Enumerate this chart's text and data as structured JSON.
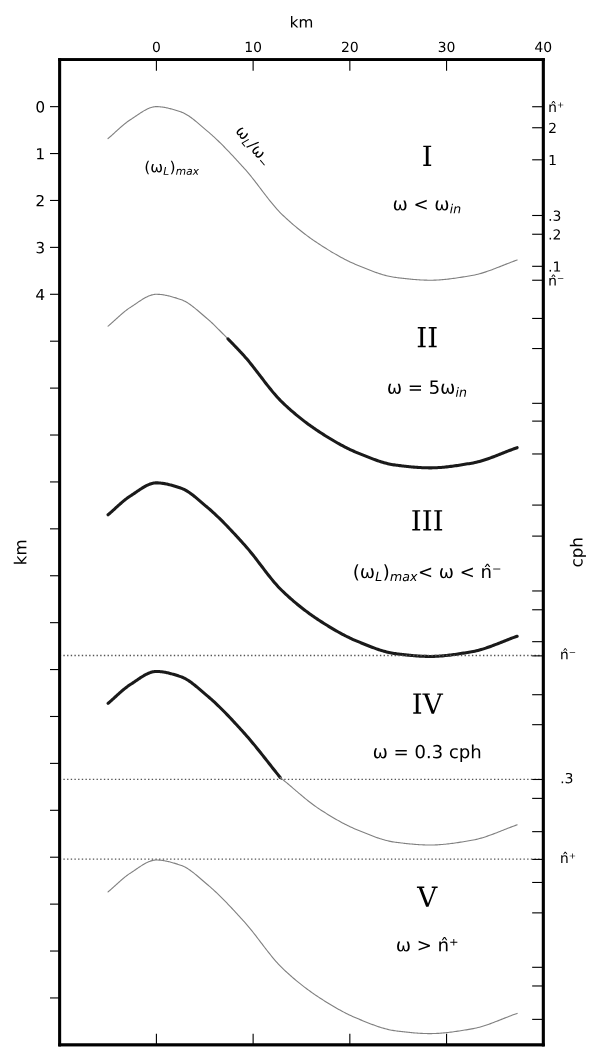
{
  "chart_data": {
    "type": "line",
    "xlabel": "km",
    "ylabel": "km",
    "y2label": "cph",
    "xlim": [
      -10,
      40
    ],
    "xticks": [
      0,
      10,
      20,
      30,
      40
    ],
    "ylim": [
      20,
      -1
    ],
    "yticks": [
      0,
      1,
      2,
      3,
      4,
      {
        "value": 5,
        "label": null
      },
      {
        "value": 6,
        "label": null
      },
      {
        "value": 7,
        "label": null
      },
      {
        "value": 8,
        "label": null
      },
      {
        "value": 9,
        "label": null
      },
      {
        "value": 10,
        "label": null
      },
      {
        "value": 11,
        "label": null
      },
      {
        "value": 12,
        "label": null
      },
      {
        "value": 13,
        "label": null
      },
      {
        "value": 14,
        "label": null
      },
      {
        "value": 15,
        "label": null
      },
      {
        "value": 16,
        "label": null
      },
      {
        "value": 17,
        "label": null
      },
      {
        "value": 18,
        "label": null
      },
      {
        "value": 19,
        "label": null
      }
    ],
    "y2lim": [
      4.9e-09,
      8.7
    ],
    "log": "y2",
    "y2ticks": [
      {
        "value": 3.15,
        "label": "n̂⁺"
      },
      2,
      1,
      {
        "value": 0.3,
        "label": ".3"
      },
      {
        "value": 0.2,
        "label": ".2"
      },
      {
        "value": 0.1,
        "label": ".1"
      },
      {
        "value": 0.074,
        "label": "n̂⁻"
      },
      {
        "value": 0.0324,
        "label": null
      },
      {
        "value": 0.0169,
        "label": null
      },
      {
        "value": 0.00517,
        "label": null
      },
      {
        "value": 0.00352,
        "label": null
      },
      {
        "value": 0.00173,
        "label": null
      },
      {
        "value": 0.000573,
        "label": null
      },
      {
        "value": 0.000293,
        "label": null
      },
      {
        "value": 8.95e-05,
        "label": null
      },
      {
        "value": 5.96e-05,
        "label": null
      },
      {
        "value": 2.99e-05,
        "label": null
      },
      {
        "value": 2.2e-05,
        "label": null
      },
      {
        "value": 9.5e-06,
        "label": null
      },
      {
        "value": 4.97e-06,
        "label": null
      },
      {
        "value": 1.52e-06,
        "label": null
      },
      {
        "value": 1.01e-06,
        "label": null
      },
      {
        "value": 4.92e-07,
        "label": null
      },
      {
        "value": 2.7e-07,
        "label": null
      },
      {
        "value": 1.64e-07,
        "label": null
      },
      {
        "value": 8.5e-08,
        "label": null
      },
      {
        "value": 2.62e-08,
        "label": null
      },
      {
        "value": 1.75e-08,
        "label": null
      },
      {
        "value": 8.5e-09,
        "label": null
      }
    ],
    "grid": false,
    "legend": false,
    "series": [
      {
        "color": "#808080",
        "x": [
          -5,
          -2.7,
          0,
          2.5,
          5.2,
          9.1,
          13,
          16.9,
          20.8,
          24.7,
          28.3,
          32.6,
          37.3
        ],
        "values": [
          0.68,
          0.28,
          0,
          0.11,
          0.51,
          1.32,
          2.3,
          2.94,
          3.38,
          3.64,
          3.7,
          3.6,
          3.27
        ]
      },
      {
        "color": "#808080",
        "x": [
          -5,
          -2.7,
          0,
          2.5,
          5.2,
          7.4
        ],
        "values": [
          4.68,
          4.28,
          4,
          4.11,
          4.51,
          4.95
        ]
      },
      {
        "color": "#1a1a1a",
        "x": [
          7.4,
          9.1,
          13,
          16.9,
          20.8,
          24.7,
          28.3,
          32.6,
          37.3
        ],
        "values": [
          4.95,
          5.32,
          6.3,
          6.94,
          7.38,
          7.64,
          7.7,
          7.6,
          7.27
        ]
      },
      {
        "color": "#1a1a1a",
        "x": [
          -5,
          -2.7,
          0,
          2.5,
          5.2,
          9.1,
          13,
          16.9,
          20.8,
          24.7,
          28.3,
          32.6,
          37.3
        ],
        "values": [
          8.7,
          8.3,
          8.02,
          8.13,
          8.53,
          9.34,
          10.32,
          10.96,
          11.4,
          11.66,
          11.72,
          11.62,
          11.29
        ]
      },
      {
        "color": "#1a1a1a",
        "x": [
          -5,
          -2.7,
          0,
          2.5,
          5.2,
          9.1,
          12.8
        ],
        "values": [
          12.72,
          12.32,
          12.04,
          12.15,
          12.55,
          13.36,
          14.3
        ]
      },
      {
        "color": "#808080",
        "x": [
          12.8,
          16.9,
          20.8,
          24.7,
          28.3,
          32.6,
          37.3
        ],
        "values": [
          14.3,
          14.98,
          15.42,
          15.68,
          15.74,
          15.64,
          15.31
        ]
      },
      {
        "color": "#808080",
        "x": [
          -5,
          -2.7,
          0,
          2.5,
          5.2,
          9.1,
          13,
          16.9,
          20.8,
          24.7,
          28.3,
          32.6,
          37.3
        ],
        "values": [
          16.74,
          16.34,
          16.06,
          16.17,
          16.57,
          17.38,
          18.36,
          19.0,
          19.44,
          19.7,
          19.76,
          19.66,
          19.33
        ]
      }
    ],
    "ref_lines": [
      {
        "axis": "y",
        "value": 11.7,
        "label": "n̂⁻",
        "color": "#555555",
        "line_style": "dotted"
      },
      {
        "axis": "y",
        "value": 14.34,
        "color": "#555555",
        "line_style": "dotted"
      },
      {
        "axis": "y",
        "value": 16.04,
        "label": "n̂⁺",
        "color": "#555555",
        "line_style": "dotted"
      }
    ],
    "annotations": [
      "I",
      "ω < ω$_{in}$",
      "II",
      "ω = 5ω$_{in}$",
      "III",
      "(ω$_{L}$)$_{max}$< ω < n̂⁻",
      "IV",
      "ω = 0.3 cph",
      "V",
      "ω > n̂⁺",
      "ω$_{L}$/ω$_{−}$",
      "(ω$_{L}$)$_{max}$",
      ".3"
    ]
  }
}
